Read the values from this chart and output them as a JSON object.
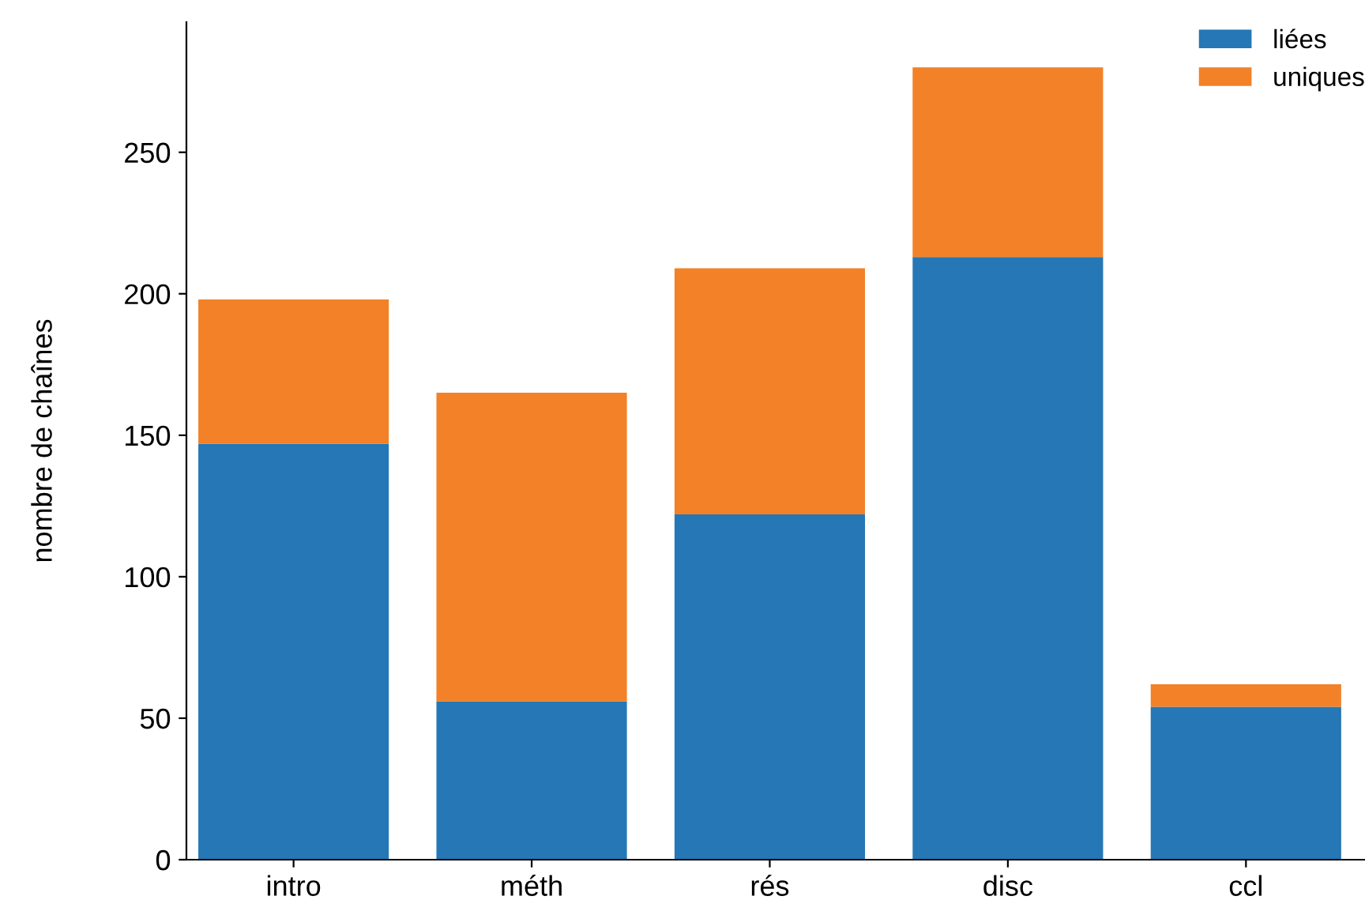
{
  "chart_data": {
    "type": "bar",
    "stacked": true,
    "ylabel": "nombre de chaînes",
    "categories": [
      "intro",
      "méth",
      "rés",
      "disc",
      "ccl"
    ],
    "series": [
      {
        "name": "liées",
        "color": "#2577b5",
        "values": [
          147,
          56,
          122,
          213,
          54
        ]
      },
      {
        "name": "uniques",
        "color": "#f28127",
        "values": [
          51,
          109,
          87,
          67,
          8
        ]
      }
    ],
    "ylim": [
      0,
      296
    ],
    "yticks": [
      0,
      50,
      100,
      150,
      200,
      250
    ],
    "grid": false,
    "legend": "top right"
  }
}
